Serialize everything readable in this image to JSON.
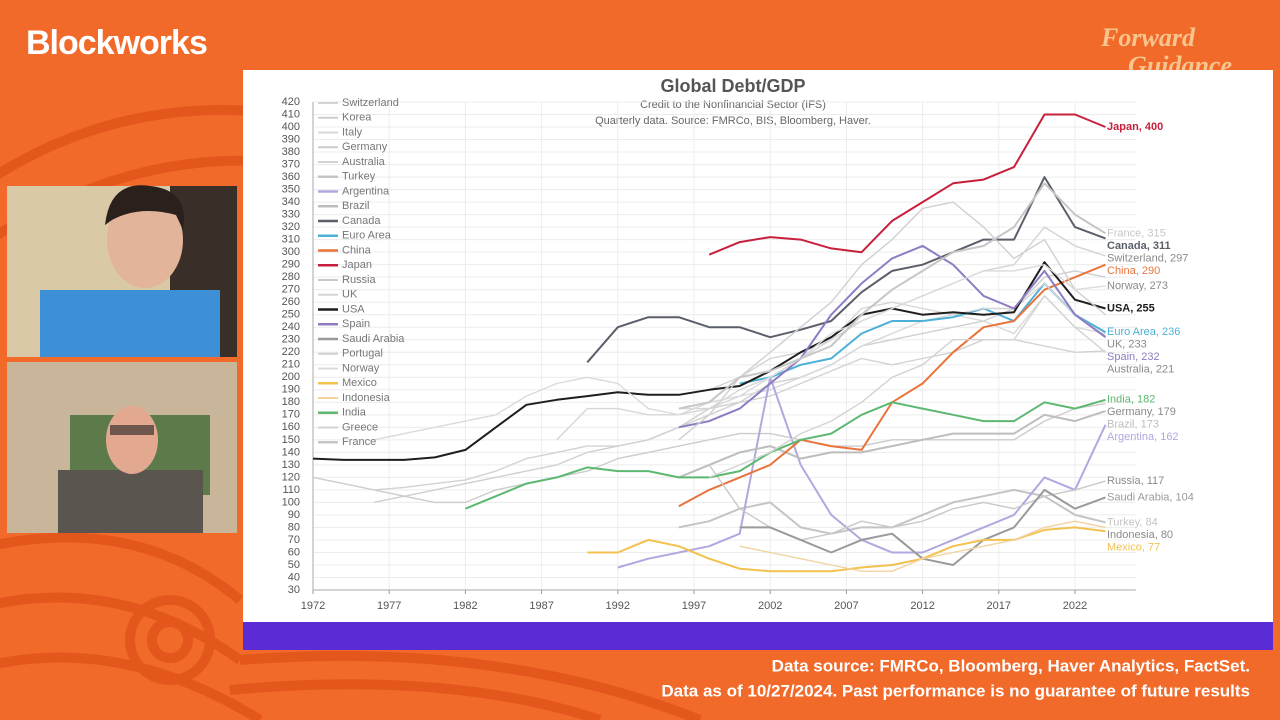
{
  "header": {
    "brand": "Blockworks",
    "logo": [
      "Forward",
      "Guidance"
    ]
  },
  "footer": [
    "Data source: FMRCo, Bloomberg, Haver Analytics, FactSet.",
    "Data as of 10/27/2024. Past performance is no guarantee of future results"
  ],
  "chart_data": {
    "type": "line",
    "title": "Global Debt/GDP",
    "subtitle": [
      "Credit to the Nonfinancial Sector (IFS)",
      "Quarterly data.  Source: FMRCo, BIS, Bloomberg, Haver."
    ],
    "x": [
      1972,
      1974,
      1976,
      1978,
      1980,
      1982,
      1984,
      1986,
      1988,
      1990,
      1992,
      1994,
      1996,
      1998,
      2000,
      2002,
      2004,
      2006,
      2008,
      2010,
      2012,
      2014,
      2016,
      2018,
      2020,
      2022,
      2024
    ],
    "xlim": [
      1972,
      2026
    ],
    "xticks": [
      1972,
      1977,
      1982,
      1987,
      1992,
      1997,
      2002,
      2007,
      2012,
      2017,
      2022
    ],
    "ylim": [
      30,
      420
    ],
    "yticks": [
      30,
      40,
      50,
      60,
      70,
      80,
      90,
      100,
      110,
      120,
      130,
      140,
      150,
      160,
      170,
      180,
      190,
      200,
      210,
      220,
      230,
      240,
      250,
      260,
      270,
      280,
      290,
      300,
      310,
      320,
      330,
      340,
      350,
      360,
      370,
      380,
      390,
      400,
      410,
      420
    ],
    "grid": true,
    "legend": "upper-left",
    "series": [
      {
        "name": "Switzerland",
        "color": "#d4d4d4",
        "end_label": "Switzerland, 297",
        "values": [
          null,
          null,
          null,
          null,
          null,
          null,
          null,
          null,
          null,
          null,
          null,
          null,
          null,
          190,
          200,
          215,
          220,
          230,
          245,
          255,
          265,
          275,
          285,
          290,
          320,
          305,
          297
        ]
      },
      {
        "name": "Korea",
        "color": "#cfcfcf",
        "values": [
          null,
          null,
          100,
          105,
          110,
          115,
          120,
          125,
          130,
          140,
          145,
          150,
          160,
          175,
          180,
          195,
          200,
          210,
          225,
          230,
          235,
          240,
          245,
          255,
          280,
          285,
          280
        ]
      },
      {
        "name": "Italy",
        "color": "#d8d8d8",
        "values": [
          null,
          null,
          null,
          null,
          null,
          null,
          null,
          null,
          null,
          null,
          null,
          null,
          175,
          175,
          185,
          190,
          200,
          210,
          225,
          235,
          245,
          250,
          245,
          235,
          265,
          240,
          235
        ]
      },
      {
        "name": "Germany",
        "color": "#cccccc",
        "end_label": "Germany, 179",
        "values": [
          120,
          115,
          110,
          105,
          100,
          100,
          110,
          115,
          120,
          125,
          135,
          140,
          145,
          150,
          155,
          155,
          150,
          145,
          145,
          150,
          150,
          150,
          150,
          150,
          165,
          175,
          179
        ]
      },
      {
        "name": "Australia",
        "color": "#d2d2d2",
        "end_label": "Australia, 221",
        "values": [
          null,
          null,
          110,
          112,
          115,
          118,
          125,
          135,
          140,
          145,
          145,
          150,
          160,
          170,
          180,
          185,
          195,
          205,
          215,
          210,
          215,
          220,
          230,
          230,
          225,
          220,
          221
        ]
      },
      {
        "name": "Turkey",
        "color": "#c4c4c4",
        "end_label": "Turkey, 84",
        "values": [
          null,
          null,
          null,
          null,
          null,
          null,
          null,
          null,
          null,
          null,
          null,
          null,
          80,
          85,
          95,
          100,
          80,
          75,
          80,
          80,
          90,
          100,
          105,
          110,
          105,
          90,
          84
        ]
      },
      {
        "name": "Argentina",
        "color": "#b3a7e0",
        "end_label": "Argentina, 162",
        "values": [
          null,
          null,
          null,
          null,
          null,
          null,
          null,
          null,
          null,
          null,
          48,
          55,
          60,
          65,
          75,
          200,
          130,
          90,
          70,
          60,
          60,
          70,
          80,
          90,
          120,
          110,
          162
        ]
      },
      {
        "name": "Brazil",
        "color": "#bdbdbd",
        "end_label": "Brazil, 173",
        "values": [
          null,
          null,
          null,
          null,
          null,
          null,
          null,
          null,
          null,
          null,
          null,
          null,
          120,
          130,
          140,
          145,
          135,
          140,
          140,
          145,
          150,
          155,
          155,
          155,
          170,
          165,
          173
        ]
      },
      {
        "name": "Canada",
        "color": "#5a5f6a",
        "end_label": "Canada, 311",
        "values": [
          null,
          null,
          null,
          null,
          null,
          null,
          null,
          null,
          null,
          212,
          240,
          248,
          248,
          240,
          240,
          232,
          238,
          245,
          268,
          285,
          290,
          300,
          310,
          310,
          360,
          320,
          311
        ]
      },
      {
        "name": "Euro Area",
        "color": "#4cb0d8",
        "end_label": "Euro Area, 236",
        "values": [
          null,
          null,
          null,
          null,
          null,
          null,
          null,
          null,
          null,
          null,
          null,
          null,
          null,
          null,
          195,
          200,
          210,
          215,
          235,
          245,
          245,
          248,
          255,
          245,
          275,
          250,
          236
        ]
      },
      {
        "name": "China",
        "color": "#e8743b",
        "end_label": "China, 290",
        "values": [
          null,
          null,
          null,
          null,
          null,
          null,
          null,
          null,
          null,
          null,
          null,
          null,
          97,
          110,
          120,
          130,
          150,
          145,
          142,
          180,
          195,
          220,
          240,
          245,
          270,
          280,
          290
        ]
      },
      {
        "name": "Japan",
        "color": "#c8203c",
        "end_label": "Japan, 400",
        "values": [
          null,
          null,
          null,
          null,
          null,
          null,
          null,
          null,
          null,
          null,
          null,
          null,
          null,
          298,
          308,
          312,
          310,
          303,
          300,
          325,
          340,
          355,
          358,
          368,
          410,
          410,
          400
        ]
      },
      {
        "name": "Russia",
        "color": "#c9c9c9",
        "end_label": "Russia, 117",
        "values": [
          null,
          null,
          null,
          null,
          null,
          null,
          null,
          null,
          null,
          null,
          null,
          null,
          null,
          130,
          95,
          80,
          70,
          75,
          85,
          80,
          85,
          95,
          100,
          95,
          105,
          110,
          117
        ]
      },
      {
        "name": "UK",
        "color": "#d6d6d6",
        "end_label": "UK, 233",
        "values": [
          null,
          null,
          null,
          null,
          null,
          null,
          null,
          null,
          150,
          175,
          175,
          170,
          170,
          175,
          190,
          200,
          215,
          230,
          255,
          260,
          255,
          250,
          255,
          255,
          275,
          250,
          233
        ]
      },
      {
        "name": "USA",
        "color": "#1e1e1e",
        "end_label": "USA, 255",
        "values": [
          135,
          134,
          134,
          134,
          136,
          142,
          160,
          178,
          182,
          185,
          188,
          186,
          186,
          190,
          193,
          205,
          220,
          232,
          250,
          255,
          250,
          252,
          250,
          252,
          292,
          262,
          255
        ]
      },
      {
        "name": "Spain",
        "color": "#8e7cc3",
        "end_label": "Spain, 232",
        "values": [
          null,
          null,
          null,
          null,
          null,
          null,
          null,
          null,
          null,
          null,
          null,
          null,
          160,
          165,
          175,
          195,
          215,
          250,
          275,
          295,
          305,
          290,
          265,
          255,
          285,
          250,
          232
        ]
      },
      {
        "name": "Saudi Arabia",
        "color": "#9a9a9a",
        "end_label": "Saudi Arabia, 104",
        "values": [
          null,
          null,
          null,
          null,
          null,
          null,
          null,
          null,
          null,
          null,
          null,
          null,
          null,
          null,
          80,
          80,
          70,
          60,
          70,
          75,
          55,
          50,
          70,
          80,
          110,
          95,
          104
        ]
      },
      {
        "name": "Portugal",
        "color": "#d0d0d0",
        "values": [
          null,
          null,
          null,
          null,
          null,
          null,
          null,
          null,
          null,
          null,
          null,
          null,
          150,
          170,
          200,
          220,
          240,
          260,
          290,
          310,
          335,
          340,
          320,
          295,
          310,
          270,
          250
        ]
      },
      {
        "name": "Norway",
        "color": "#dadada",
        "end_label": "Norway, 273",
        "values": [
          null,
          null,
          150,
          155,
          160,
          165,
          170,
          185,
          195,
          200,
          195,
          175,
          170,
          180,
          185,
          200,
          215,
          235,
          245,
          255,
          265,
          275,
          285,
          285,
          290,
          270,
          273
        ]
      },
      {
        "name": "Mexico",
        "color": "#f2c14e",
        "end_label": "Mexico, 77",
        "values": [
          null,
          null,
          null,
          null,
          null,
          null,
          null,
          null,
          null,
          60,
          60,
          70,
          65,
          55,
          47,
          45,
          45,
          45,
          48,
          50,
          55,
          65,
          70,
          70,
          78,
          80,
          77
        ]
      },
      {
        "name": "Indonesia",
        "color": "#f2d3a0",
        "end_label": "Indonesia, 80",
        "values": [
          null,
          null,
          null,
          null,
          null,
          null,
          null,
          null,
          null,
          null,
          null,
          null,
          null,
          null,
          65,
          60,
          55,
          50,
          45,
          45,
          55,
          60,
          65,
          70,
          80,
          85,
          80
        ]
      },
      {
        "name": "India",
        "color": "#5cb870",
        "end_label": "India, 182",
        "values": [
          null,
          null,
          null,
          null,
          null,
          95,
          105,
          115,
          120,
          128,
          125,
          125,
          120,
          120,
          125,
          140,
          150,
          155,
          170,
          180,
          175,
          170,
          165,
          165,
          180,
          175,
          182
        ]
      },
      {
        "name": "Greece",
        "color": "#d3d3d3",
        "values": [
          null,
          null,
          null,
          null,
          null,
          null,
          null,
          null,
          null,
          null,
          null,
          null,
          null,
          120,
          130,
          140,
          155,
          165,
          180,
          200,
          210,
          230,
          230,
          230,
          265,
          240,
          220
        ]
      },
      {
        "name": "France",
        "color": "#c6c6c6",
        "end_label": "France, 315",
        "values": [
          null,
          null,
          null,
          null,
          null,
          null,
          null,
          null,
          null,
          null,
          null,
          null,
          175,
          180,
          200,
          205,
          215,
          225,
          250,
          270,
          285,
          300,
          305,
          320,
          355,
          330,
          315
        ]
      }
    ]
  }
}
